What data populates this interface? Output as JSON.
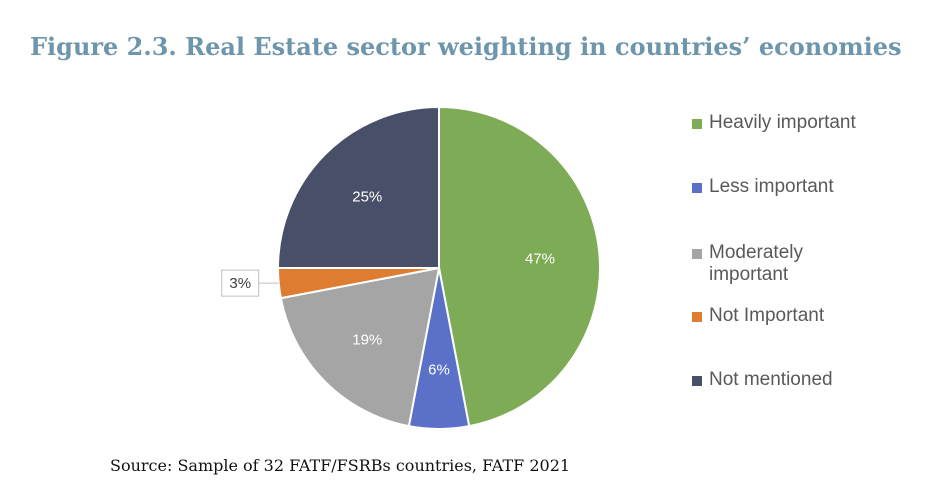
{
  "title": "Figure 2.3. Real Estate sector weighting in countries’ economies",
  "source": "Source: Sample of 32 FATF/FSRBs countries, FATF 2021",
  "chart_data": {
    "type": "pie",
    "title": "",
    "categories": [
      "Heavily important",
      "Less important",
      "Moderately important",
      "Not Important",
      "Not mentioned"
    ],
    "values": [
      47,
      6,
      19,
      3,
      25
    ],
    "labels": [
      "47%",
      "6%",
      "19%",
      "3%",
      "25%"
    ],
    "colors": [
      "#7eab55",
      "#5a71c7",
      "#a5a5a5",
      "#de7d32",
      "#475068"
    ],
    "legend_position": "right",
    "start_angle": "12 o'clock, clockwise"
  }
}
